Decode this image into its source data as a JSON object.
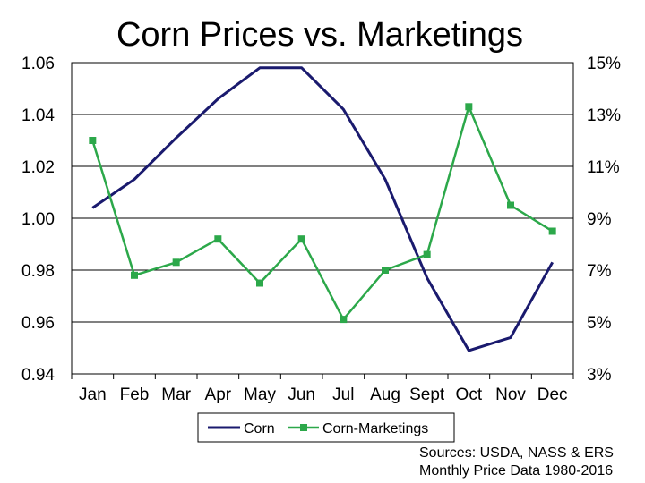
{
  "chart_data": {
    "type": "line",
    "title": "Corn Prices vs. Marketings",
    "categories": [
      "Jan",
      "Feb",
      "Mar",
      "Apr",
      "May",
      "Jun",
      "Jul",
      "Aug",
      "Sept",
      "Oct",
      "Nov",
      "Dec"
    ],
    "series": [
      {
        "name": "Corn",
        "axis": "left",
        "color": "#1a1a6e",
        "marker": "none",
        "values": [
          1.004,
          1.015,
          1.031,
          1.046,
          1.058,
          1.058,
          1.042,
          1.015,
          0.977,
          0.949,
          0.954,
          0.983
        ]
      },
      {
        "name": "Corn-Marketings",
        "axis": "right",
        "color": "#2ca84a",
        "marker": "square",
        "values": [
          12.0,
          6.8,
          7.3,
          8.2,
          6.5,
          8.2,
          5.1,
          7.0,
          7.6,
          13.3,
          9.5,
          8.5
        ]
      }
    ],
    "y_left": {
      "ylim": [
        0.94,
        1.06
      ],
      "ticks": [
        0.94,
        0.96,
        0.98,
        1.0,
        1.02,
        1.04,
        1.06
      ],
      "tick_labels": [
        "0.94",
        "0.96",
        "0.98",
        "1.00",
        "1.02",
        "1.04",
        "1.06"
      ]
    },
    "y_right": {
      "ylim": [
        3,
        15
      ],
      "ticks": [
        3,
        5,
        7,
        9,
        11,
        13,
        15
      ],
      "tick_labels": [
        "3%",
        "5%",
        "7%",
        "9%",
        "11%",
        "13%",
        "15%"
      ]
    },
    "grid": true,
    "legend_position": "bottom",
    "legend_labels": [
      "Corn",
      "Corn-Marketings"
    ]
  },
  "source_lines": [
    "Sources: USDA, NASS & ERS",
    "Monthly Price Data 1980-2016"
  ]
}
